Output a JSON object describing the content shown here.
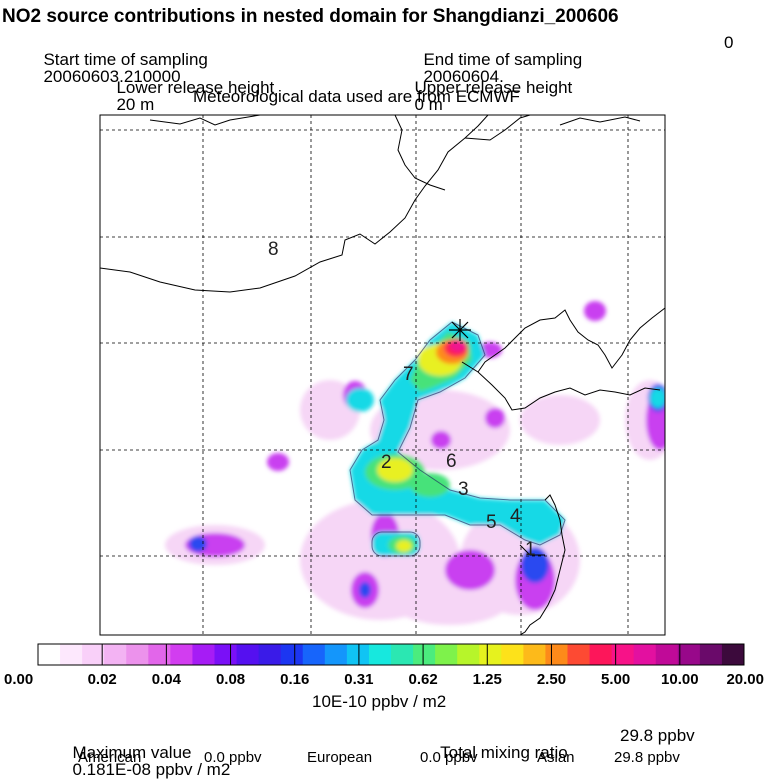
{
  "header": {
    "title": "NO2 source contributions in nested domain for Shangdianzi_200606",
    "start_label": "Start time of sampling",
    "start_value": "20060603.210000",
    "end_label": "End time of sampling",
    "end_value": "20060604.",
    "end_suffix": "0",
    "lower_label": "Lower release height",
    "lower_value": "20 m",
    "upper_label": "Upper release height",
    "upper_value": "0 m",
    "met_line": "Meteorological data used are from ECMWF"
  },
  "map": {
    "labels": [
      "8",
      "7",
      "2",
      "6",
      "3",
      "5",
      "4",
      "1"
    ],
    "receptor_marker": "*"
  },
  "chart_data": {
    "type": "heatmap",
    "colorbar": {
      "ticks": [
        "0.00",
        "0.02",
        "0.04",
        "0.08",
        "0.16",
        "0.31",
        "0.62",
        "1.25",
        "2.50",
        "5.00",
        "10.00",
        "20.00"
      ],
      "unit": "10E-10 ppbv / m2",
      "colors": [
        "#ffffff",
        "#fde8fd",
        "#f9d0f9",
        "#f3b3f3",
        "#ec92ec",
        "#e266ea",
        "#d23df0",
        "#a61cf5",
        "#7a10f7",
        "#5510f0",
        "#3a1be8",
        "#1c36f2",
        "#1765fb",
        "#1496fb",
        "#10c4f4",
        "#17e8de",
        "#2be7b2",
        "#4bec7e",
        "#7ef24b",
        "#b7f52a",
        "#e6f21e",
        "#fde21a",
        "#fdba1a",
        "#fd8a1a",
        "#fd4a33",
        "#fd165a",
        "#f71288",
        "#e310a0",
        "#c00a98",
        "#98088a",
        "#6a0a6a",
        "#3c0a3c"
      ]
    },
    "max_value_text": "0.181E-08 ppbv / m2",
    "total_mixing_ratio": "29.8 ppbv",
    "regional": [
      {
        "name": "American",
        "value": "0.0 ppbv"
      },
      {
        "name": "European",
        "value": "0.0 ppbv"
      },
      {
        "name": "Asian",
        "value": "29.8 ppbv"
      }
    ]
  },
  "footer": {
    "max_label": "Maximum value",
    "total_label": "Total mixing ratio"
  }
}
